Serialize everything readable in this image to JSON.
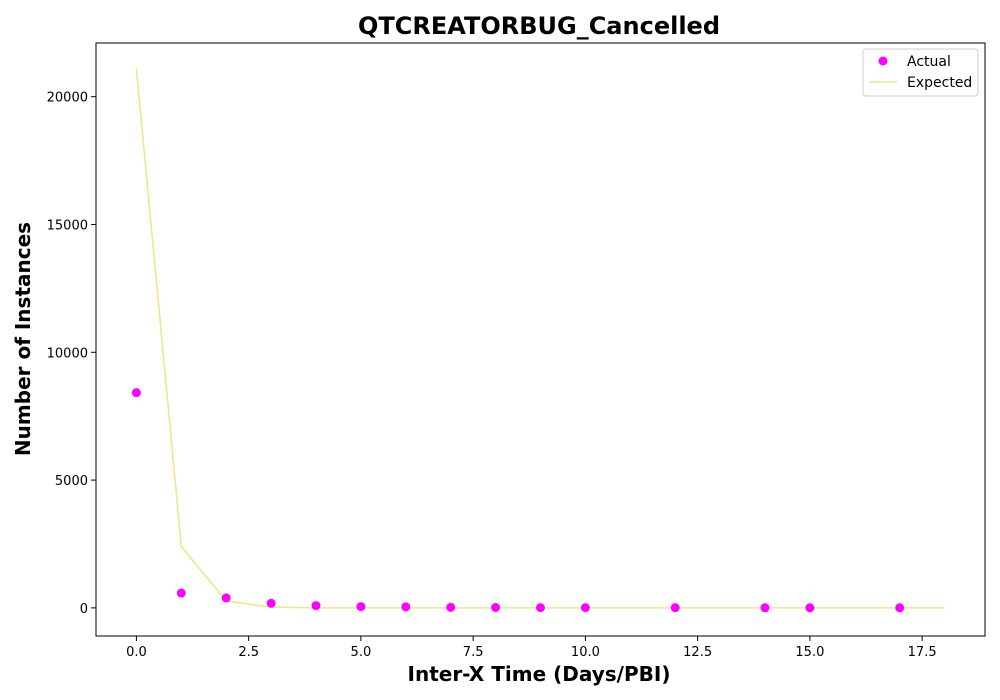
{
  "chart_data": {
    "type": "scatter",
    "title": "QTCREATORBUG_Cancelled",
    "xlabel": "Inter-X Time (Days/PBI)",
    "ylabel": "Number of Instances",
    "xlim": [
      -0.9,
      18.9
    ],
    "ylim": [
      -1100,
      22100
    ],
    "x_ticks": [
      0.0,
      2.5,
      5.0,
      7.5,
      10.0,
      12.5,
      15.0,
      17.5
    ],
    "x_tick_labels": [
      "0.0",
      "2.5",
      "5.0",
      "7.5",
      "10.0",
      "12.5",
      "15.0",
      "17.5"
    ],
    "y_ticks": [
      0,
      5000,
      10000,
      15000,
      20000
    ],
    "y_tick_labels": [
      "0",
      "5000",
      "10000",
      "15000",
      "20000"
    ],
    "grid": false,
    "legend_position": "top-right",
    "series": [
      {
        "name": "Actual",
        "kind": "scatter",
        "color": "#ff00ff",
        "x": [
          0,
          1,
          2,
          3,
          4,
          5,
          6,
          7,
          8,
          9,
          10,
          12,
          14,
          15,
          17
        ],
        "y": [
          8420,
          580,
          390,
          180,
          90,
          50,
          40,
          20,
          15,
          10,
          10,
          8,
          5,
          5,
          3
        ]
      },
      {
        "name": "Expected",
        "kind": "line",
        "color": "#f0e68c",
        "x": [
          0,
          1,
          2,
          3,
          4,
          5,
          6,
          7,
          8,
          9,
          10,
          11,
          12,
          13,
          14,
          15,
          16,
          17,
          18
        ],
        "y": [
          21100,
          2400,
          270,
          30,
          4,
          0,
          0,
          0,
          0,
          0,
          0,
          0,
          0,
          0,
          0,
          0,
          0,
          0,
          0
        ]
      }
    ]
  }
}
